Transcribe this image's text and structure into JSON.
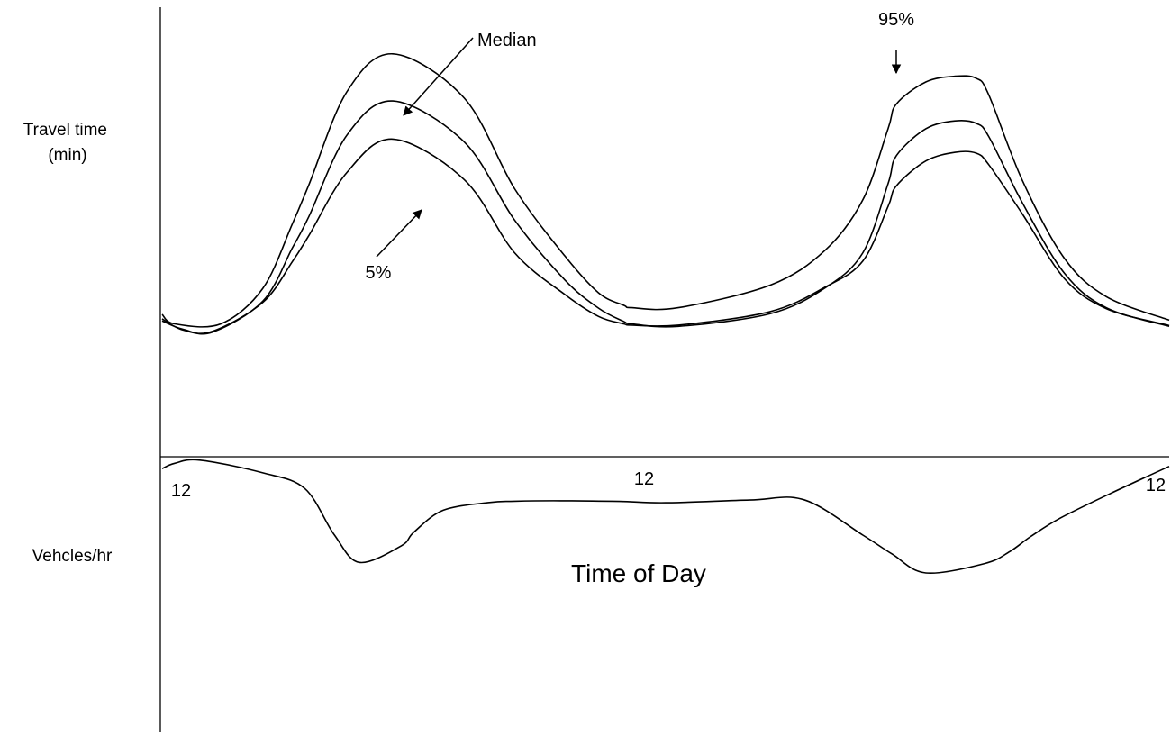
{
  "chart_data": {
    "type": "line",
    "xlabel": "Time of Day",
    "x_tick_labels": [
      "12",
      "12",
      "12"
    ],
    "panels": [
      {
        "name": "travel-time-panel",
        "ylabel_lines": [
          "Travel time",
          "(min)"
        ],
        "series": [
          {
            "name": "95%",
            "x": [
              0.0,
              0.3,
              1.4,
              2.4,
              3.1,
              3.5,
              4.4,
              5.5,
              7.2,
              8.4,
              9.6,
              10.4,
              11.0,
              11.2,
              12.3,
              14.5,
              15.8,
              16.7,
              17.3,
              17.5,
              18.2,
              18.9,
              19.4,
              19.7,
              20.5,
              21.5,
              22.5,
              24.0
            ],
            "y": [
              3.29,
              3.06,
              3.06,
              3.92,
              5.47,
              6.43,
              8.67,
              9.59,
              8.52,
              6.33,
              4.7,
              3.81,
              3.51,
              3.45,
              3.45,
              4.0,
              4.84,
              6.06,
              7.78,
              8.38,
              8.91,
              9.05,
              9.0,
              8.6,
              6.53,
              4.65,
              3.72,
              3.15
            ]
          },
          {
            "name": "Median",
            "x": [
              0.0,
              0.5,
              1.2,
              2.4,
              3.1,
              3.5,
              4.4,
              5.5,
              7.2,
              8.4,
              9.6,
              10.4,
              11.0,
              11.2,
              12.3,
              14.5,
              15.8,
              16.7,
              17.3,
              17.5,
              18.2,
              18.9,
              19.4,
              19.7,
              20.5,
              21.5,
              22.5,
              24.0
            ],
            "y": [
              3.13,
              2.93,
              2.86,
              3.61,
              4.89,
              5.66,
              7.62,
              8.45,
              7.46,
              5.57,
              4.12,
              3.44,
              3.12,
              3.06,
              3.0,
              3.31,
              3.93,
              4.78,
              6.45,
              7.13,
              7.78,
              7.97,
              7.91,
              7.59,
              5.99,
              4.29,
              3.45,
              3.0
            ]
          },
          {
            "name": "5%",
            "x": [
              0.0,
              0.5,
              1.2,
              2.4,
              3.1,
              3.5,
              4.4,
              5.5,
              7.2,
              8.4,
              9.6,
              10.4,
              11.0,
              11.2,
              12.3,
              14.5,
              15.8,
              16.7,
              17.3,
              17.5,
              18.2,
              18.9,
              19.4,
              19.7,
              20.5,
              21.5,
              22.5,
              24.0
            ],
            "y": [
              3.18,
              2.91,
              2.88,
              3.58,
              4.56,
              5.2,
              6.72,
              7.53,
              6.55,
              4.78,
              3.77,
              3.24,
              3.06,
              3.03,
              3.03,
              3.36,
              3.95,
              4.58,
              5.9,
              6.4,
              7.0,
              7.21,
              7.19,
              6.91,
              5.72,
              4.16,
              3.43,
              3.02
            ]
          }
        ],
        "ylim": [
          0,
          10
        ]
      },
      {
        "name": "volume-panel",
        "ylabel_lines": [
          "Vehcles/hr"
        ],
        "series": [
          {
            "name": "",
            "x": [
              0.0,
              0.3,
              0.9,
              2.4,
              3.4,
              4.1,
              4.7,
              5.7,
              6.0,
              6.7,
              7.8,
              8.4,
              9.5,
              10.9,
              12.0,
              14.0,
              15.3,
              16.7,
              17.4,
              18.2,
              19.6,
              20.2,
              20.7,
              21.4,
              22.6,
              24.0
            ],
            "y": [
              9.3,
              9.61,
              9.8,
              9.05,
              8.12,
              5.4,
              3.76,
              4.74,
              5.55,
              6.84,
              7.3,
              7.37,
              7.4,
              7.36,
              7.28,
              7.44,
              7.46,
              5.37,
              4.25,
              3.14,
              3.69,
              4.4,
              5.29,
              6.37,
              7.83,
              9.43
            ]
          }
        ],
        "ylim": [
          0,
          10
        ]
      }
    ],
    "annotations": [
      {
        "text": "Median",
        "series": "Median",
        "arrow_at_x": 5.75
      },
      {
        "text": "95%",
        "series": "95%",
        "arrow_at_x": 17.5
      },
      {
        "text": "5%",
        "series": "5%",
        "arrow_at_x": 6.3
      }
    ]
  }
}
